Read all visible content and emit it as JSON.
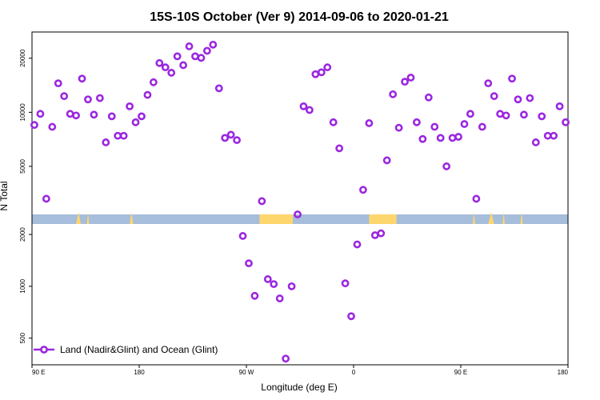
{
  "chart_data": {
    "type": "scatter",
    "title": "15S-10S October (Ver 9)   2014-09-06 to 2020-01-21",
    "xlabel": "Longitude (deg E)",
    "ylabel": "N Total",
    "x_ticks": [
      {
        "value": 90,
        "label": "90 E"
      },
      {
        "value": 180,
        "label": "180"
      },
      {
        "value": 270,
        "label": "90 W"
      },
      {
        "value": 360,
        "label": "0"
      },
      {
        "value": 450,
        "label": "90 E"
      },
      {
        "value": 540,
        "label": "180"
      }
    ],
    "xlim": [
      90,
      540
    ],
    "y_scale": "log",
    "upper_y_ticks": [
      5000,
      10000,
      20000
    ],
    "lower_y_ticks": [
      500,
      1000,
      2000
    ],
    "legend": {
      "position": "bottom-left",
      "label": "Land (Nadir&Glint) and Ocean (Glint)"
    },
    "colors": {
      "series": "#9B27E0",
      "ocean_band": "#A6BDDB",
      "land_band": "#FDD66E"
    },
    "series": [
      {
        "name": "Land (Nadir&Glint) and Ocean (Glint)",
        "points": [
          [
            92,
            8500
          ],
          [
            97,
            9800
          ],
          [
            102,
            3300
          ],
          [
            107,
            8300
          ],
          [
            112,
            14500
          ],
          [
            117,
            12300
          ],
          [
            122,
            9800
          ],
          [
            127,
            9600
          ],
          [
            132,
            15400
          ],
          [
            137,
            11800
          ],
          [
            142,
            9700
          ],
          [
            147,
            12000
          ],
          [
            152,
            6800
          ],
          [
            157,
            9500
          ],
          [
            162,
            7400
          ],
          [
            167,
            7400
          ],
          [
            172,
            10800
          ],
          [
            177,
            8800
          ],
          [
            182,
            9500
          ],
          [
            187,
            12500
          ],
          [
            192,
            14700
          ],
          [
            197,
            18800
          ],
          [
            202,
            17800
          ],
          [
            207,
            16600
          ],
          [
            212,
            20500
          ],
          [
            217,
            18300
          ],
          [
            222,
            23300
          ],
          [
            227,
            20500
          ],
          [
            232,
            20100
          ],
          [
            237,
            22000
          ],
          [
            242,
            23800
          ],
          [
            247,
            13600
          ],
          [
            252,
            7200
          ],
          [
            257,
            7500
          ],
          [
            262,
            7000
          ],
          [
            267,
            1960
          ],
          [
            272,
            1360
          ],
          [
            277,
            880
          ],
          [
            283,
            3200
          ],
          [
            288,
            1100
          ],
          [
            293,
            1030
          ],
          [
            298,
            850
          ],
          [
            303,
            380
          ],
          [
            308,
            1000
          ],
          [
            313,
            2700
          ],
          [
            318,
            10800
          ],
          [
            323,
            10300
          ],
          [
            328,
            16300
          ],
          [
            333,
            16700
          ],
          [
            338,
            17800
          ],
          [
            343,
            8800
          ],
          [
            348,
            6300
          ],
          [
            353,
            1040
          ],
          [
            358,
            670
          ],
          [
            363,
            1750
          ],
          [
            368,
            3700
          ],
          [
            373,
            8700
          ],
          [
            378,
            1980
          ],
          [
            383,
            2030
          ],
          [
            388,
            5400
          ],
          [
            393,
            12600
          ],
          [
            398,
            8200
          ],
          [
            403,
            14800
          ],
          [
            408,
            15600
          ],
          [
            413,
            8800
          ],
          [
            418,
            7100
          ],
          [
            423,
            12100
          ],
          [
            428,
            8300
          ],
          [
            433,
            7200
          ],
          [
            438,
            5000
          ],
          [
            443,
            7200
          ],
          [
            448,
            7300
          ],
          [
            453,
            8600
          ],
          [
            458,
            9800
          ],
          [
            463,
            3300
          ],
          [
            468,
            8300
          ],
          [
            473,
            14500
          ],
          [
            478,
            12300
          ],
          [
            483,
            9800
          ],
          [
            488,
            9600
          ],
          [
            493,
            15400
          ],
          [
            498,
            11800
          ],
          [
            503,
            9700
          ],
          [
            508,
            12000
          ],
          [
            513,
            6800
          ],
          [
            518,
            9500
          ],
          [
            523,
            7400
          ],
          [
            528,
            7400
          ],
          [
            533,
            10800
          ],
          [
            538,
            8800
          ]
        ]
      }
    ]
  }
}
